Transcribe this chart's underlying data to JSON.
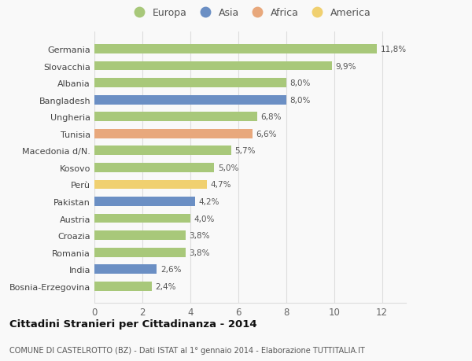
{
  "categories": [
    "Bosnia-Erzegovina",
    "India",
    "Romania",
    "Croazia",
    "Austria",
    "Pakistan",
    "Perù",
    "Kosovo",
    "Macedonia d/N.",
    "Tunisia",
    "Ungheria",
    "Bangladesh",
    "Albania",
    "Slovacchia",
    "Germania"
  ],
  "values": [
    2.4,
    2.6,
    3.8,
    3.8,
    4.0,
    4.2,
    4.7,
    5.0,
    5.7,
    6.6,
    6.8,
    8.0,
    8.0,
    9.9,
    11.8
  ],
  "labels": [
    "2,4%",
    "2,6%",
    "3,8%",
    "3,8%",
    "4,0%",
    "4,2%",
    "4,7%",
    "5,0%",
    "5,7%",
    "6,6%",
    "6,8%",
    "8,0%",
    "8,0%",
    "9,9%",
    "11,8%"
  ],
  "continents": [
    "Europa",
    "Asia",
    "Europa",
    "Europa",
    "Europa",
    "Asia",
    "America",
    "Europa",
    "Europa",
    "Africa",
    "Europa",
    "Asia",
    "Europa",
    "Europa",
    "Europa"
  ],
  "continent_colors": {
    "Europa": "#a8c87a",
    "Asia": "#6b8fc4",
    "Africa": "#e8a87c",
    "America": "#f0d070"
  },
  "legend_order": [
    "Europa",
    "Asia",
    "Africa",
    "America"
  ],
  "title": "Cittadini Stranieri per Cittadinanza - 2014",
  "subtitle": "COMUNE DI CASTELROTTO (BZ) - Dati ISTAT al 1° gennaio 2014 - Elaborazione TUTTITALIA.IT",
  "xlim": [
    0,
    13
  ],
  "xticks": [
    0,
    2,
    4,
    6,
    8,
    10,
    12
  ],
  "bg_color": "#f9f9f9",
  "grid_color": "#dddddd",
  "bar_height": 0.55
}
